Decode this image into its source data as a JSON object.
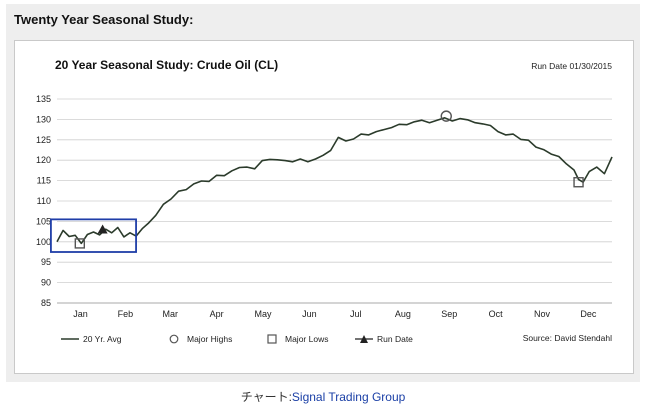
{
  "page": {
    "panel_title": "Twenty Year Seasonal Study:",
    "credit_prefix": "チャート:",
    "credit_source": "Signal Trading Group"
  },
  "colors": {
    "line": "#2b3b2b",
    "highlight_box": "#1f3ea8",
    "grid": "#cfcfcf"
  },
  "chart_data": {
    "type": "line",
    "title": "20 Year Seasonal Study: Crude Oil (CL)",
    "run_date_label": "Run Date 01/30/2015",
    "source_label": "Source: David Stendahl",
    "xlabel": "",
    "ylabel": "",
    "ylim": [
      85,
      135
    ],
    "yticks": [
      85,
      90,
      95,
      100,
      105,
      110,
      115,
      120,
      125,
      130,
      135
    ],
    "xlim": [
      0,
      365
    ],
    "months": [
      "Jan",
      "Feb",
      "Mar",
      "Apr",
      "May",
      "Jun",
      "Jul",
      "Aug",
      "Sep",
      "Oct",
      "Nov",
      "Dec"
    ],
    "month_days": [
      0,
      31,
      59,
      90,
      120,
      151,
      181,
      212,
      243,
      273,
      304,
      334
    ],
    "grid": true,
    "legend_position": "bottom",
    "legend": [
      {
        "label": "20 Yr. Avg",
        "marker": "line"
      },
      {
        "label": "Major Highs",
        "marker": "circle"
      },
      {
        "label": "Major Lows",
        "marker": "square"
      },
      {
        "label": "Run Date",
        "marker": "triangle"
      }
    ],
    "series": [
      {
        "name": "20 Yr. Avg",
        "x": [
          0,
          4,
          8,
          12,
          16,
          20,
          24,
          28,
          32,
          36,
          40,
          44,
          48,
          52,
          56,
          60,
          65,
          70,
          75,
          80,
          85,
          90,
          95,
          100,
          105,
          110,
          115,
          120,
          125,
          130,
          135,
          140,
          145,
          150,
          155,
          160,
          165,
          170,
          175,
          180,
          185,
          190,
          195,
          200,
          205,
          210,
          215,
          220,
          225,
          230,
          235,
          240,
          245,
          250,
          255,
          260,
          265,
          270,
          275,
          280,
          285,
          290,
          295,
          300,
          305,
          310,
          315,
          320,
          325,
          330,
          335,
          340,
          343,
          346,
          350,
          355,
          360,
          365
        ],
        "values": [
          100.0,
          102.8,
          101.3,
          101.6,
          99.6,
          101.8,
          102.4,
          101.7,
          103.1,
          102.2,
          103.5,
          101.2,
          102.2,
          101.4,
          103.2,
          104.5,
          106.5,
          109.2,
          110.5,
          112.4,
          112.8,
          114.2,
          114.9,
          114.8,
          116.3,
          116.2,
          117.4,
          118.2,
          118.3,
          117.9,
          119.9,
          120.2,
          120.1,
          119.9,
          119.6,
          120.3,
          119.6,
          120.3,
          121.2,
          122.4,
          125.6,
          124.7,
          125.2,
          126.4,
          126.2,
          127.0,
          127.5,
          128.0,
          128.8,
          128.7,
          129.4,
          129.8,
          129.2,
          129.8,
          130.4,
          129.6,
          130.2,
          129.9,
          129.2,
          128.9,
          128.5,
          127.0,
          126.2,
          126.4,
          125.1,
          124.9,
          123.2,
          122.6,
          121.5,
          120.9,
          119.1,
          117.6,
          115.3,
          114.6,
          117.2,
          118.3,
          116.7,
          120.8
        ]
      }
    ],
    "major_highs": [
      {
        "x": 256,
        "y": 130.8
      }
    ],
    "major_lows": [
      {
        "x": 15,
        "y": 99.6
      },
      {
        "x": 343,
        "y": 114.6
      }
    ],
    "run_date_point": {
      "x": 30,
      "y": 103.0
    },
    "highlight_range": {
      "x_from": -4,
      "x_to": 52,
      "y_from": 97.5,
      "y_to": 105.5
    }
  }
}
